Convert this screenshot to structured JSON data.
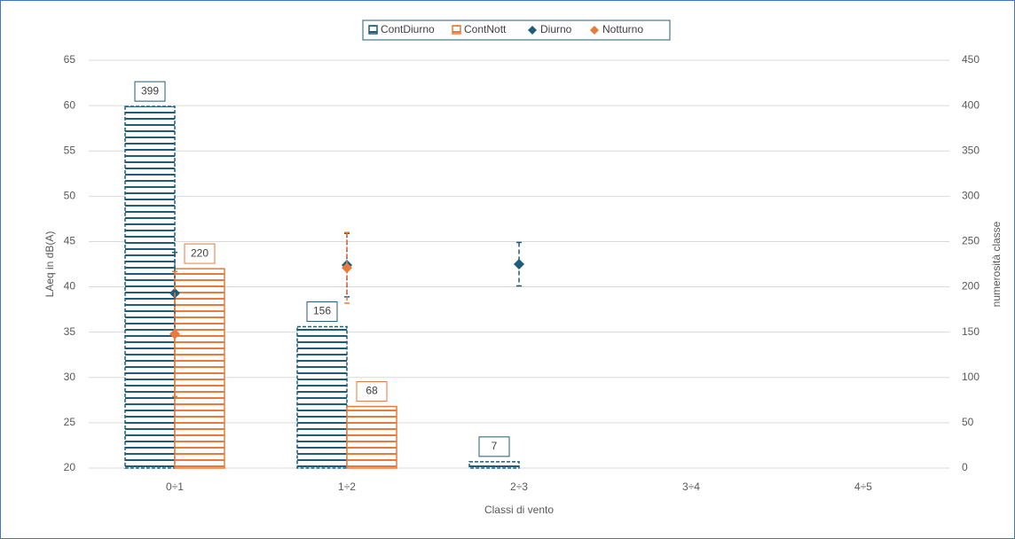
{
  "chart_data": {
    "type": "combo",
    "categories": [
      "0÷1",
      "1÷2",
      "2÷3",
      "3÷4",
      "4÷5"
    ],
    "series": [
      {
        "name": "ContDiurno",
        "type": "bar",
        "axis": "y2",
        "color": "#1f5c7a",
        "values": [
          399,
          156,
          7,
          null,
          null
        ]
      },
      {
        "name": "ContNott",
        "type": "bar",
        "axis": "y2",
        "color": "#e87a3c",
        "values": [
          220,
          68,
          null,
          null,
          null
        ]
      },
      {
        "name": "Diurno",
        "type": "scatter",
        "color": "#1f5c7a",
        "values": [
          39.3,
          42.4,
          42.5,
          null,
          null
        ],
        "errors": [
          4.5,
          3.5,
          2.4,
          null,
          null
        ]
      },
      {
        "name": "Notturno",
        "type": "scatter",
        "color": "#e87a3c",
        "values": [
          34.8,
          42.1,
          null,
          null,
          null
        ],
        "errors": [
          6.9,
          3.9,
          null,
          null,
          null
        ]
      }
    ],
    "ylabel": "LAeq in dB(A)",
    "y2label": "numerosità classe",
    "xlabel": "Classi di vento",
    "ylim": [
      20,
      65
    ],
    "yticks": [
      20,
      25,
      30,
      35,
      40,
      45,
      50,
      55,
      60,
      65
    ],
    "y2lim": [
      0,
      450
    ],
    "y2ticks": [
      0,
      50,
      100,
      150,
      200,
      250,
      300,
      350,
      400,
      450
    ],
    "grid": true,
    "legend": "top"
  }
}
